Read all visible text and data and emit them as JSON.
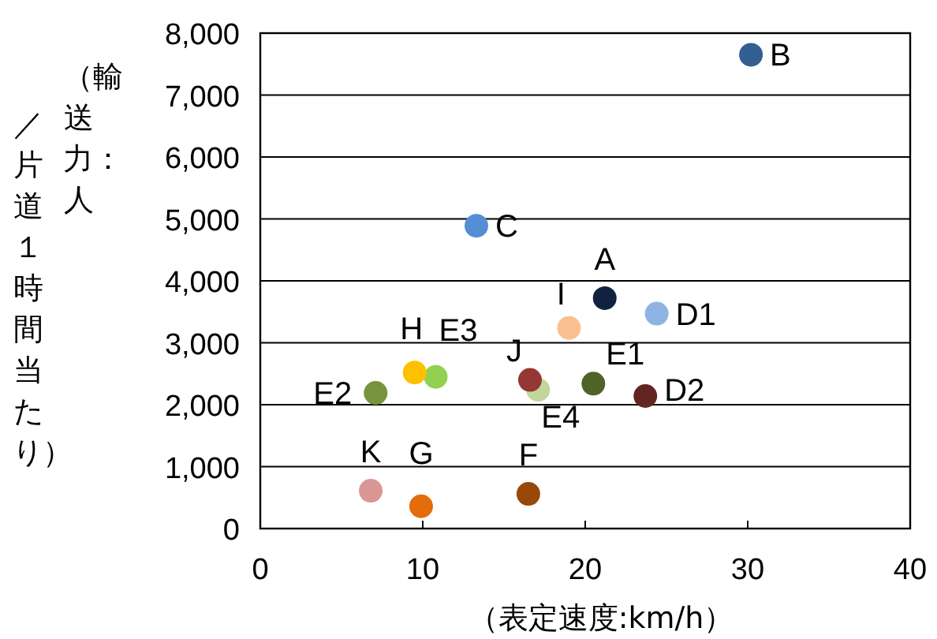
{
  "chart_data": {
    "type": "scatter",
    "xlabel": "（表定速度:km/h）",
    "ylabel": "（輸送力：人／片道１時間当たり）",
    "xlim": [
      0,
      40
    ],
    "xticks": [
      0,
      10,
      20,
      30,
      40
    ],
    "ylim": [
      0,
      8000
    ],
    "yticks": [
      {
        "value": 0,
        "label": "0"
      },
      {
        "value": 1000,
        "label": "1,000"
      },
      {
        "value": 2000,
        "label": "2,000"
      },
      {
        "value": 3000,
        "label": "3,000"
      },
      {
        "value": 4000,
        "label": "4,000"
      },
      {
        "value": 5000,
        "label": "5,000"
      },
      {
        "value": 6000,
        "label": "6,000"
      },
      {
        "value": 7000,
        "label": "7,000"
      },
      {
        "value": 8000,
        "label": "8,000"
      }
    ],
    "grid": "y",
    "marker": "circle",
    "series": [
      {
        "name": "A",
        "color": "#10223f",
        "x": [
          21.2
        ],
        "values": [
          3720
        ]
      },
      {
        "name": "B",
        "color": "#335f91",
        "x": [
          30.2
        ],
        "values": [
          7650
        ]
      },
      {
        "name": "C",
        "color": "#558ed5",
        "x": [
          13.3
        ],
        "values": [
          4890
        ]
      },
      {
        "name": "D1",
        "color": "#8eb4e3",
        "x": [
          24.4
        ],
        "values": [
          3470
        ]
      },
      {
        "name": "D2",
        "color": "#632523",
        "x": [
          23.7
        ],
        "values": [
          2140
        ]
      },
      {
        "name": "E1",
        "color": "#4f6228",
        "x": [
          20.5
        ],
        "values": [
          2340
        ]
      },
      {
        "name": "E2",
        "color": "#77933c",
        "x": [
          7.1
        ],
        "values": [
          2190
        ]
      },
      {
        "name": "E3",
        "color": "#92d050",
        "x": [
          10.8
        ],
        "values": [
          2450
        ]
      },
      {
        "name": "E4",
        "color": "#c3d69b",
        "x": [
          17.1
        ],
        "values": [
          2240
        ]
      },
      {
        "name": "F",
        "color": "#984807",
        "x": [
          16.5
        ],
        "values": [
          560
        ]
      },
      {
        "name": "G",
        "color": "#e46c0a",
        "x": [
          9.9
        ],
        "values": [
          360
        ]
      },
      {
        "name": "H",
        "color": "#ffc000",
        "x": [
          9.5
        ],
        "values": [
          2520
        ]
      },
      {
        "name": "I",
        "color": "#fac090",
        "x": [
          19.0
        ],
        "values": [
          3240
        ]
      },
      {
        "name": "J",
        "color": "#953735",
        "x": [
          16.6
        ],
        "values": [
          2400
        ]
      },
      {
        "name": "K",
        "color": "#d99694",
        "x": [
          6.8
        ],
        "values": [
          610
        ]
      }
    ]
  }
}
